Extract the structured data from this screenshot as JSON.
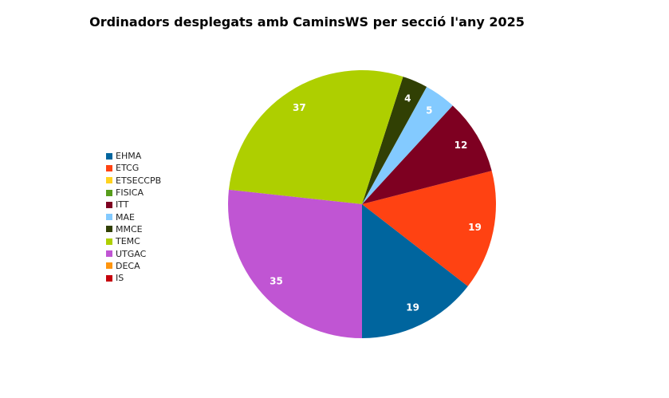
{
  "chart_data": {
    "type": "pie",
    "title": "Ordinadors desplegats amb CaminsWS per secció l'any 2025",
    "categories": [
      "EHMA",
      "ETCG",
      "ETSECCPB",
      "FISICA",
      "ITT",
      "MAE",
      "MMCE",
      "TEMC",
      "UTGAC",
      "DECA",
      "IS"
    ],
    "values": [
      19,
      19,
      0,
      0,
      12,
      5,
      4,
      37,
      35,
      0,
      0
    ],
    "colors": [
      "#00659e",
      "#ff4212",
      "#ffd320",
      "#579d1c",
      "#7e0021",
      "#83caff",
      "#314004",
      "#aecf00",
      "#c055d3",
      "#ff950e",
      "#c5000b"
    ],
    "legend_position": "left"
  }
}
